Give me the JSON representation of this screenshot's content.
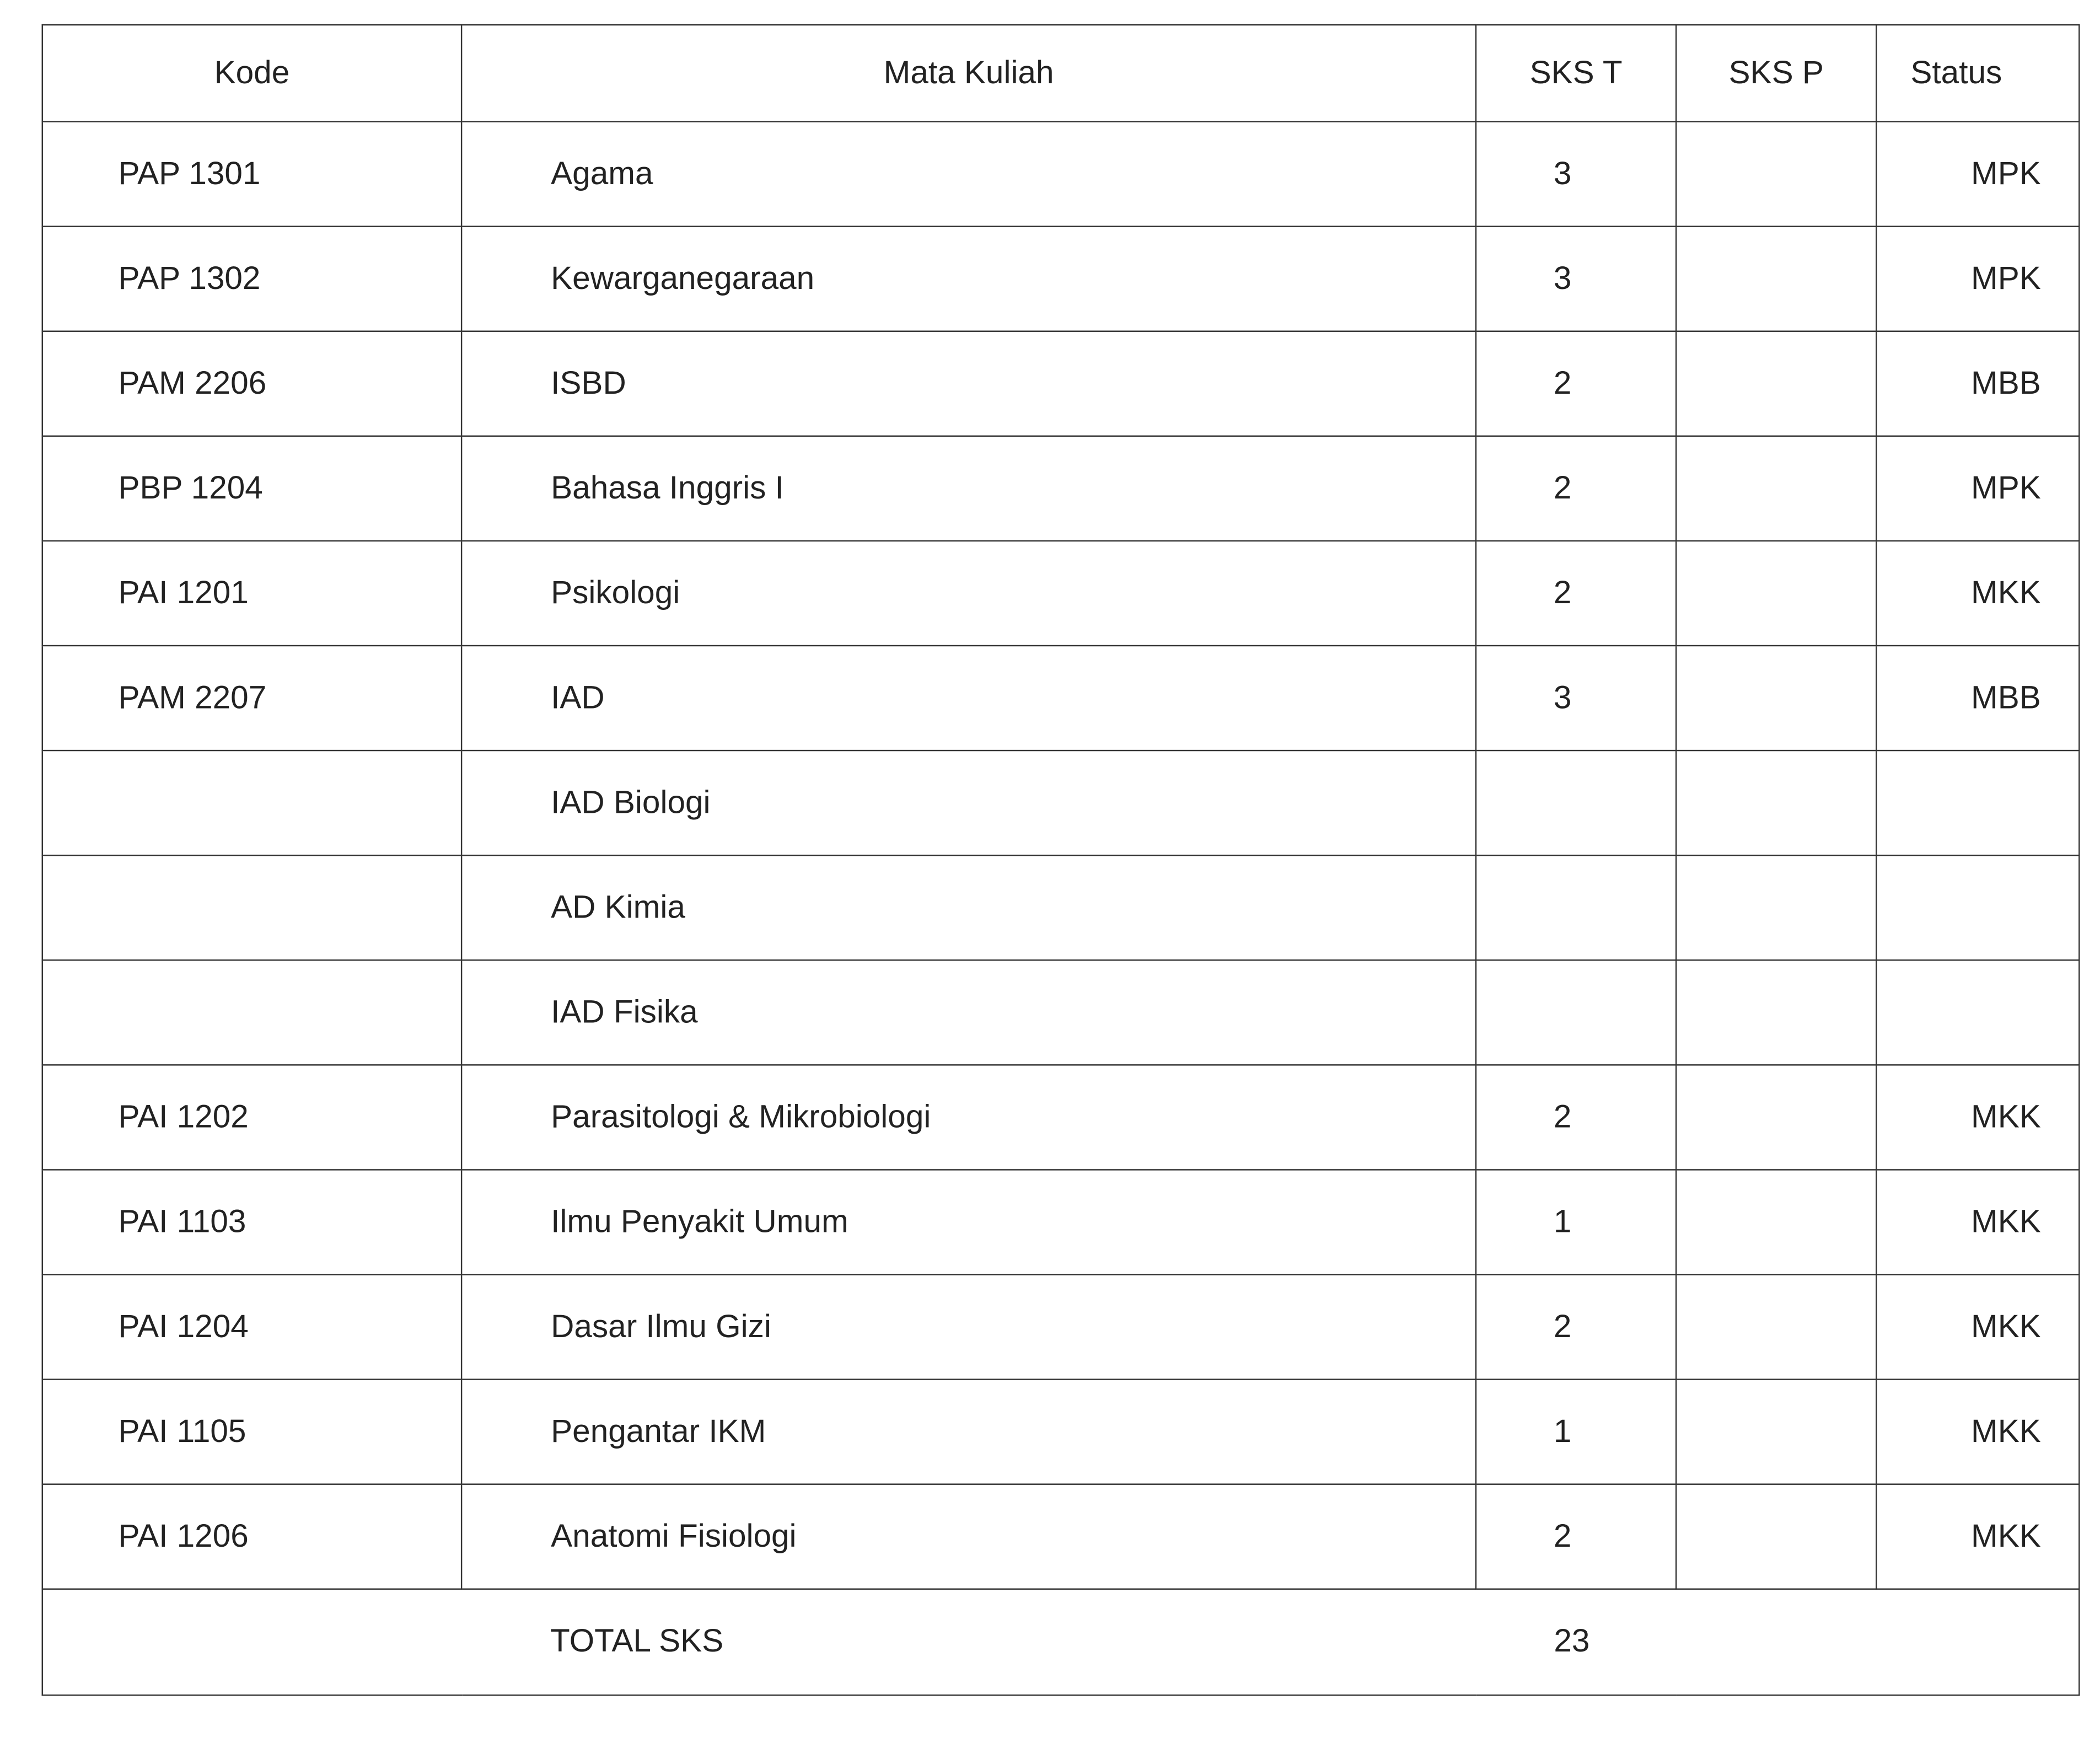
{
  "headers": {
    "kode": "Kode",
    "mata_kuliah": "Mata Kuliah",
    "sks_t": "SKS T",
    "sks_p": "SKS P",
    "status": "Status"
  },
  "rows": [
    {
      "kode": "PAP 1301",
      "mata_kuliah": "Agama",
      "sks_t": "3",
      "sks_p": "",
      "status": "MPK"
    },
    {
      "kode": "PAP 1302",
      "mata_kuliah": "Kewarganegaraan",
      "sks_t": "3",
      "sks_p": "",
      "status": "MPK"
    },
    {
      "kode": "PAM 2206",
      "mata_kuliah": "ISBD",
      "sks_t": "2",
      "sks_p": "",
      "status": "MBB"
    },
    {
      "kode": "PBP 1204",
      "mata_kuliah": "Bahasa Inggris I",
      "sks_t": "2",
      "sks_p": "",
      "status": "MPK"
    },
    {
      "kode": "PAI 1201",
      "mata_kuliah": "Psikologi",
      "sks_t": "2",
      "sks_p": "",
      "status": "MKK"
    },
    {
      "kode": "PAM 2207",
      "mata_kuliah": "IAD",
      "sks_t": "3",
      "sks_p": "",
      "status": "MBB"
    },
    {
      "kode": "",
      "mata_kuliah": "IAD Biologi",
      "sks_t": "",
      "sks_p": "",
      "status": ""
    },
    {
      "kode": "",
      "mata_kuliah": "AD Kimia",
      "sks_t": "",
      "sks_p": "",
      "status": ""
    },
    {
      "kode": "",
      "mata_kuliah": "IAD Fisika",
      "sks_t": "",
      "sks_p": "",
      "status": ""
    },
    {
      "kode": "PAI 1202",
      "mata_kuliah": "Parasitologi & Mikrobiologi",
      "sks_t": "2",
      "sks_p": "",
      "status": "MKK"
    },
    {
      "kode": "PAI 1103",
      "mata_kuliah": "Ilmu Penyakit Umum",
      "sks_t": "1",
      "sks_p": "",
      "status": "MKK"
    },
    {
      "kode": "PAI 1204",
      "mata_kuliah": "Dasar Ilmu Gizi",
      "sks_t": "2",
      "sks_p": "",
      "status": "MKK"
    },
    {
      "kode": "PAI 1105",
      "mata_kuliah": "Pengantar IKM",
      "sks_t": "1",
      "sks_p": "",
      "status": "MKK"
    },
    {
      "kode": "PAI 1206",
      "mata_kuliah": "Anatomi Fisiologi",
      "sks_t": "2",
      "sks_p": "",
      "status": "MKK"
    }
  ],
  "total": {
    "label": "TOTAL SKS",
    "value": "23"
  }
}
